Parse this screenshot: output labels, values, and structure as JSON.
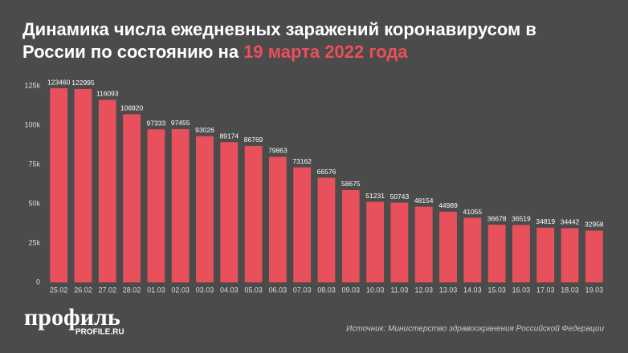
{
  "chart_data": {
    "type": "bar",
    "title": "Динамика числа ежедневных заражений коронавирусом в России по состоянию на ",
    "title_highlight": "19 марта 2022 года",
    "categories": [
      "25.02",
      "26.02",
      "27.02",
      "28.02",
      "01.03",
      "02.03",
      "03.03",
      "04.03",
      "05.03",
      "06.03",
      "07.03",
      "08.03",
      "09.03",
      "10.03",
      "11.03",
      "12.03",
      "13.03",
      "14.03",
      "15.03",
      "16.03",
      "17.03",
      "18.03",
      "19.03"
    ],
    "values": [
      123460,
      122995,
      116093,
      106920,
      97333,
      97455,
      93026,
      89174,
      86769,
      79863,
      73162,
      66576,
      58675,
      51231,
      50743,
      48154,
      44989,
      41055,
      36678,
      36519,
      34819,
      34442,
      32958
    ],
    "color": "#e8505b",
    "highlight_color": "#e8505b",
    "ylim": [
      0,
      125000
    ],
    "yticks": [
      0,
      {
        "value": 25000,
        "label": "25k"
      },
      {
        "value": 50000,
        "label": "50k"
      },
      {
        "value": 75000,
        "label": "75k"
      },
      {
        "value": 100000,
        "label": "100k"
      },
      {
        "value": 125000,
        "label": "125k"
      }
    ],
    "grid": false,
    "logo": "профиль",
    "logo_sub": "PROFILE.RU",
    "source": "Источник: Министерство здравоохранения Российской Федерации"
  }
}
